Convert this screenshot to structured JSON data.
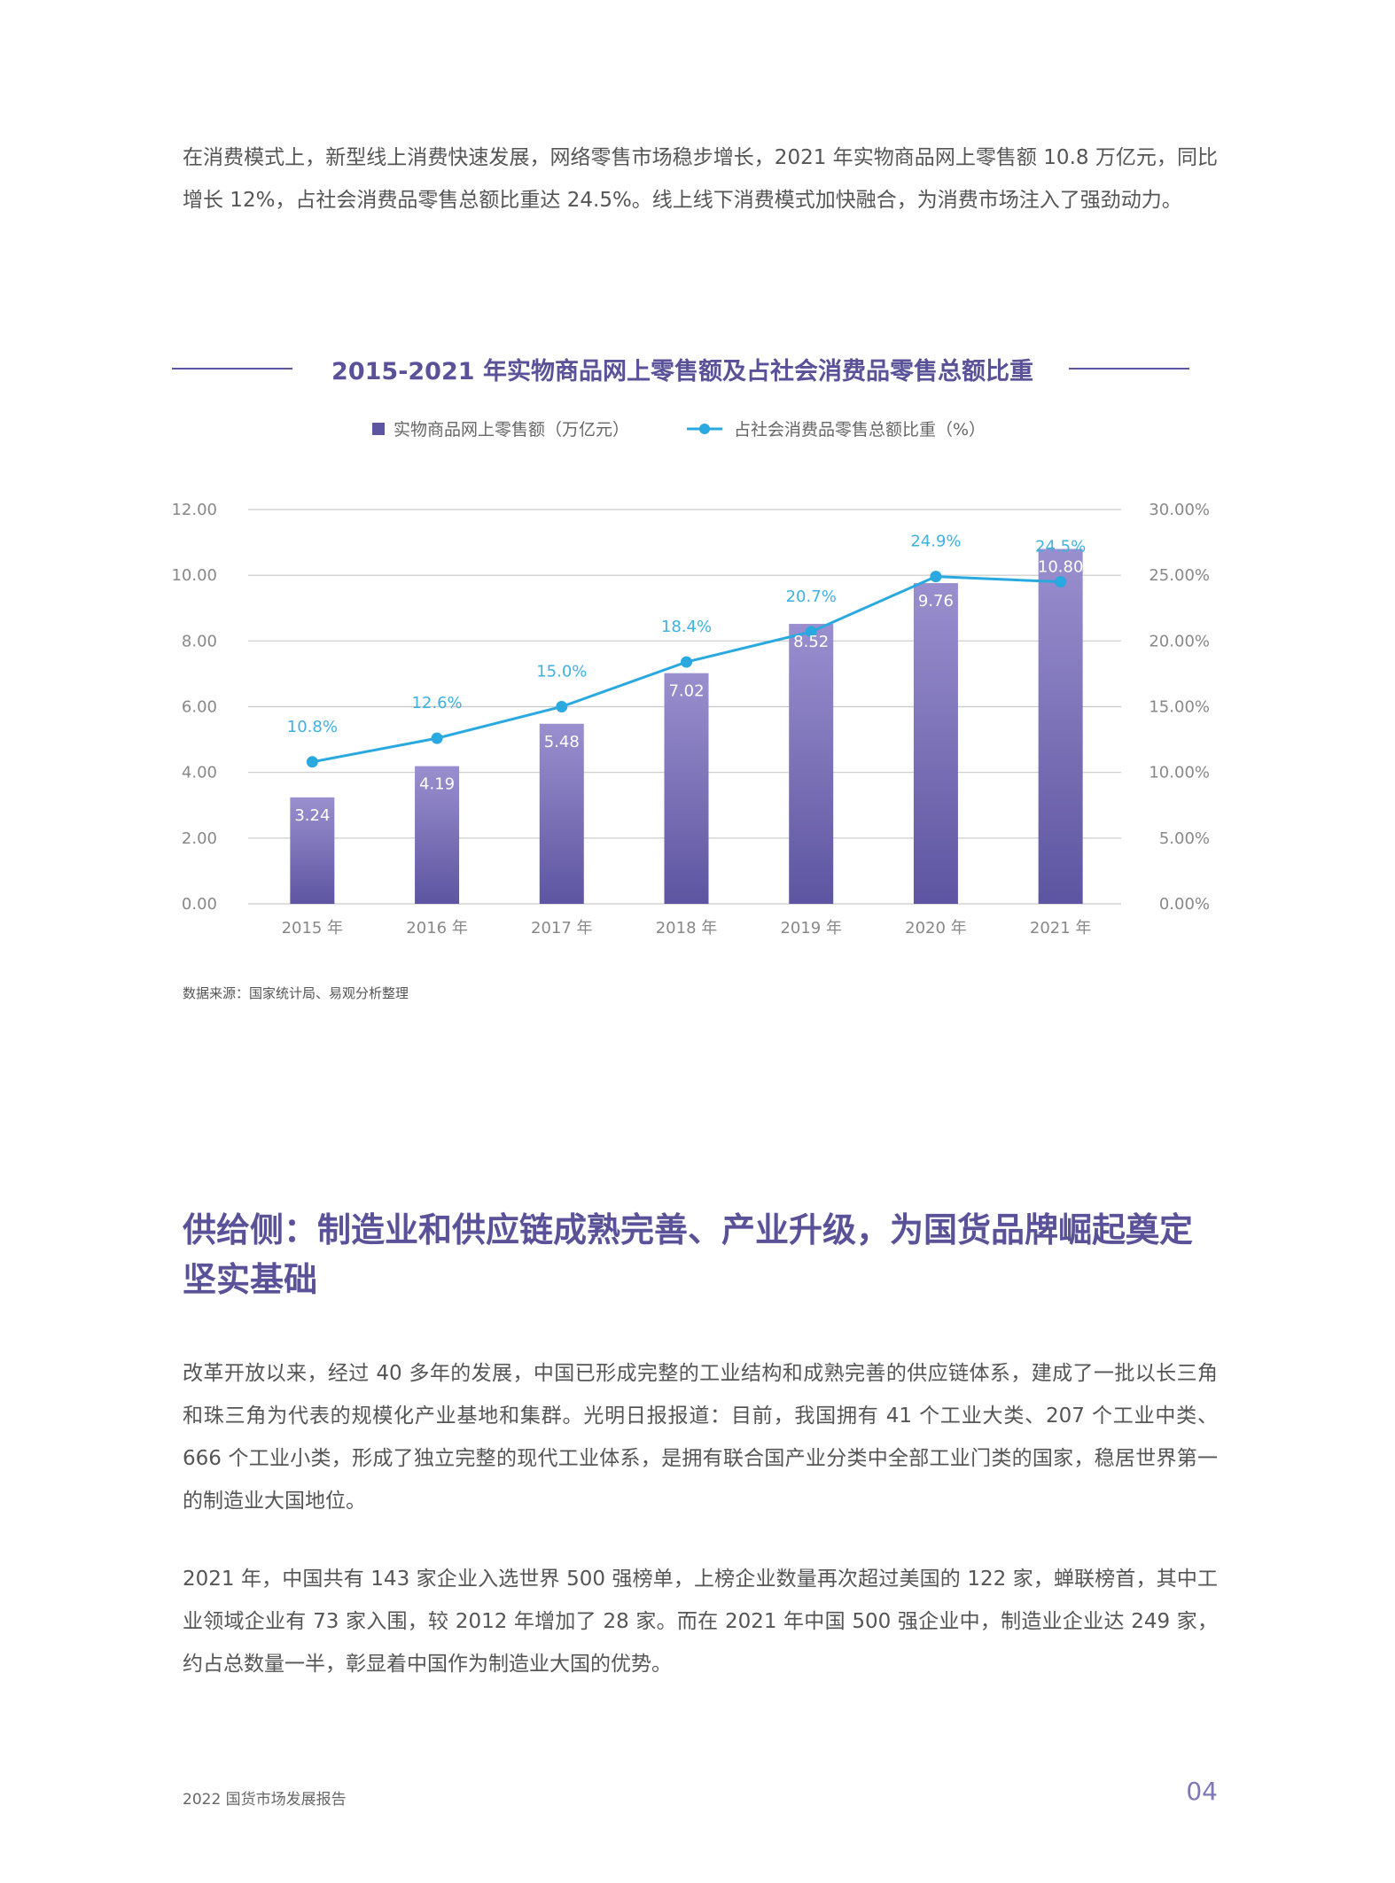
{
  "paragraphs": {
    "p1": "在消费模式上，新型线上消费快速发展，网络零售市场稳步增长，2021 年实物商品网上零售额 10.8 万亿元，同比增长 12%，占社会消费品零售总额比重达 24.5%。线上线下消费模式加快融合，为消费市场注入了强劲动力。",
    "p2": "改革开放以来，经过 40 多年的发展，中国已形成完整的工业结构和成熟完善的供应链体系，建成了一批以长三角和珠三角为代表的规模化产业基地和集群。光明日报报道：目前，我国拥有 41 个工业大类、207 个工业中类、666 个工业小类，形成了独立完整的现代工业体系，是拥有联合国产业分类中全部工业门类的国家，稳居世界第一的制造业大国地位。",
    "p3": "2021 年，中国共有 143 家企业入选世界 500 强榜单，上榜企业数量再次超过美国的 122 家，蝉联榜首，其中工业领域企业有 73 家入围，较 2012 年增加了 28 家。而在 2021 年中国 500 强企业中，制造业企业达 249 家，约占总数量一半，彰显着中国作为制造业大国的优势。"
  },
  "section_heading": "供给侧：制造业和供应链成熟完善、产业升级，为国货品牌崛起奠定坚实基础",
  "source": "数据来源：国家统计局、易观分析整理",
  "footer": {
    "report_name": "2022 国货市场发展报告",
    "page_number": "04"
  },
  "colors": {
    "bar_top": "#9a8fce",
    "bar_bottom": "#5d55a1",
    "line": "#29a9df",
    "accent": "#5a5298"
  },
  "chart_data": {
    "type": "bar",
    "title": "2015-2021 年实物商品网上零售额及占社会消费品零售总额比重",
    "categories": [
      "2015 年",
      "2016 年",
      "2017 年",
      "2018 年",
      "2019 年",
      "2020 年",
      "2021 年"
    ],
    "series": [
      {
        "name": "实物商品网上零售额（万亿元）",
        "type": "bar",
        "axis": "left",
        "values": [
          3.24,
          4.19,
          5.48,
          7.02,
          8.52,
          9.76,
          10.8
        ],
        "labels": [
          "3.24",
          "4.19",
          "5.48",
          "7.02",
          "8.52",
          "9.76",
          "10.80"
        ]
      },
      {
        "name": "占社会消费品零售总额比重（%）",
        "type": "line",
        "axis": "right",
        "values": [
          10.8,
          12.6,
          15.0,
          18.4,
          20.7,
          24.9,
          24.5
        ],
        "labels": [
          "10.8%",
          "12.6%",
          "15.0%",
          "18.4%",
          "20.7%",
          "24.9%",
          "24.5%"
        ]
      }
    ],
    "y_left": {
      "ylim": [
        0,
        12
      ],
      "ticks": [
        "0.00",
        "2.00",
        "4.00",
        "6.00",
        "8.00",
        "10.00",
        "12.00"
      ]
    },
    "y_right": {
      "ylim": [
        0,
        30
      ],
      "ticks": [
        "0.00%",
        "5.00%",
        "10.00%",
        "15.00%",
        "20.00%",
        "25.00%",
        "30.00%"
      ]
    },
    "grid": true,
    "legend_position": "top-center"
  }
}
